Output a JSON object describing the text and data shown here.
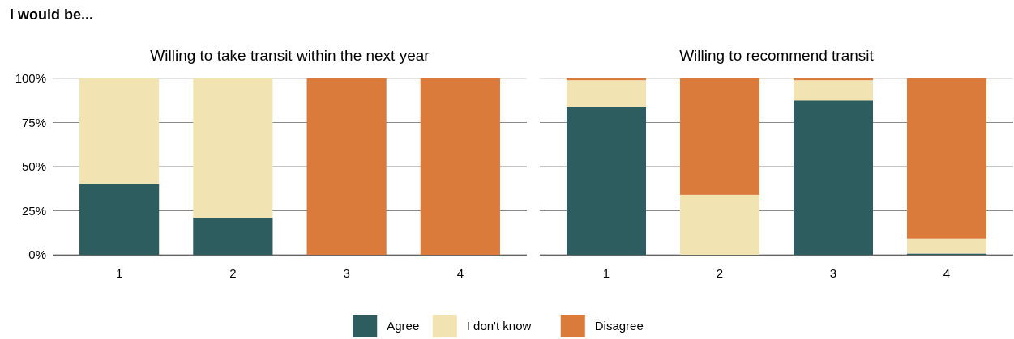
{
  "chart_data": [
    {
      "type": "bar",
      "title": "Willing to take transit within the next year",
      "annotations": [
        "I would be..."
      ],
      "categories": [
        "1",
        "2",
        "3",
        "4"
      ],
      "stacked": true,
      "ylim": [
        0,
        100
      ],
      "yticks": [
        {
          "value": 0,
          "label": "0%"
        },
        {
          "value": 25,
          "label": "25%"
        },
        {
          "value": 50,
          "label": "50%"
        },
        {
          "value": 75,
          "label": "75%"
        },
        {
          "value": 100,
          "label": "100%"
        }
      ],
      "grid": "y",
      "legend": "bottom",
      "series": [
        {
          "name": "Agree",
          "color": "#2e5d5f",
          "values": [
            40,
            21,
            0,
            0
          ]
        },
        {
          "name": "I don't know",
          "color": "#f2e3b3",
          "values": [
            60,
            79,
            0,
            0
          ]
        },
        {
          "name": "Disagree",
          "color": "#da7a3b",
          "values": [
            0,
            0,
            100,
            100
          ]
        }
      ]
    },
    {
      "type": "bar",
      "title": "Willing to recommend transit",
      "categories": [
        "1",
        "2",
        "3",
        "4"
      ],
      "stacked": true,
      "ylim": [
        0,
        100
      ],
      "yticks": [
        {
          "value": 0,
          "label": null
        },
        {
          "value": 25,
          "label": null
        },
        {
          "value": 50,
          "label": null
        },
        {
          "value": 75,
          "label": null
        },
        {
          "value": 100,
          "label": null
        }
      ],
      "grid": "y",
      "tick_labels": "x",
      "series": [
        {
          "color": "#2e5d5f",
          "values": [
            84,
            0,
            87.5,
            0.7
          ]
        },
        {
          "color": "#f2e3b3",
          "values": [
            15,
            34,
            11.5,
            8.6
          ]
        },
        {
          "color": "#da7a3b",
          "values": [
            1,
            66,
            1,
            90.7
          ]
        }
      ]
    }
  ]
}
